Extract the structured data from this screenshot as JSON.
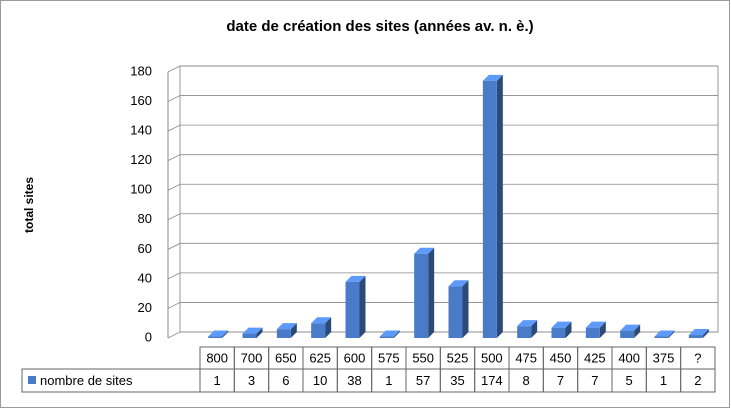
{
  "chart_data": {
    "type": "bar",
    "title": "date de création des sites (années av. n. è.)",
    "y_label": "total sites",
    "categories": [
      "800",
      "700",
      "650",
      "625",
      "600",
      "575",
      "550",
      "525",
      "500",
      "475",
      "450",
      "425",
      "400",
      "375",
      "?"
    ],
    "series": [
      {
        "name": "nombre de sites",
        "color": "#4a7bc8",
        "values": [
          1,
          3,
          6,
          10,
          38,
          1,
          57,
          35,
          174,
          8,
          7,
          7,
          5,
          1,
          2
        ]
      }
    ],
    "ylim": [
      0,
      180
    ],
    "yticks": [
      0,
      20,
      40,
      60,
      80,
      100,
      120,
      140,
      160,
      180
    ],
    "grid": true
  }
}
